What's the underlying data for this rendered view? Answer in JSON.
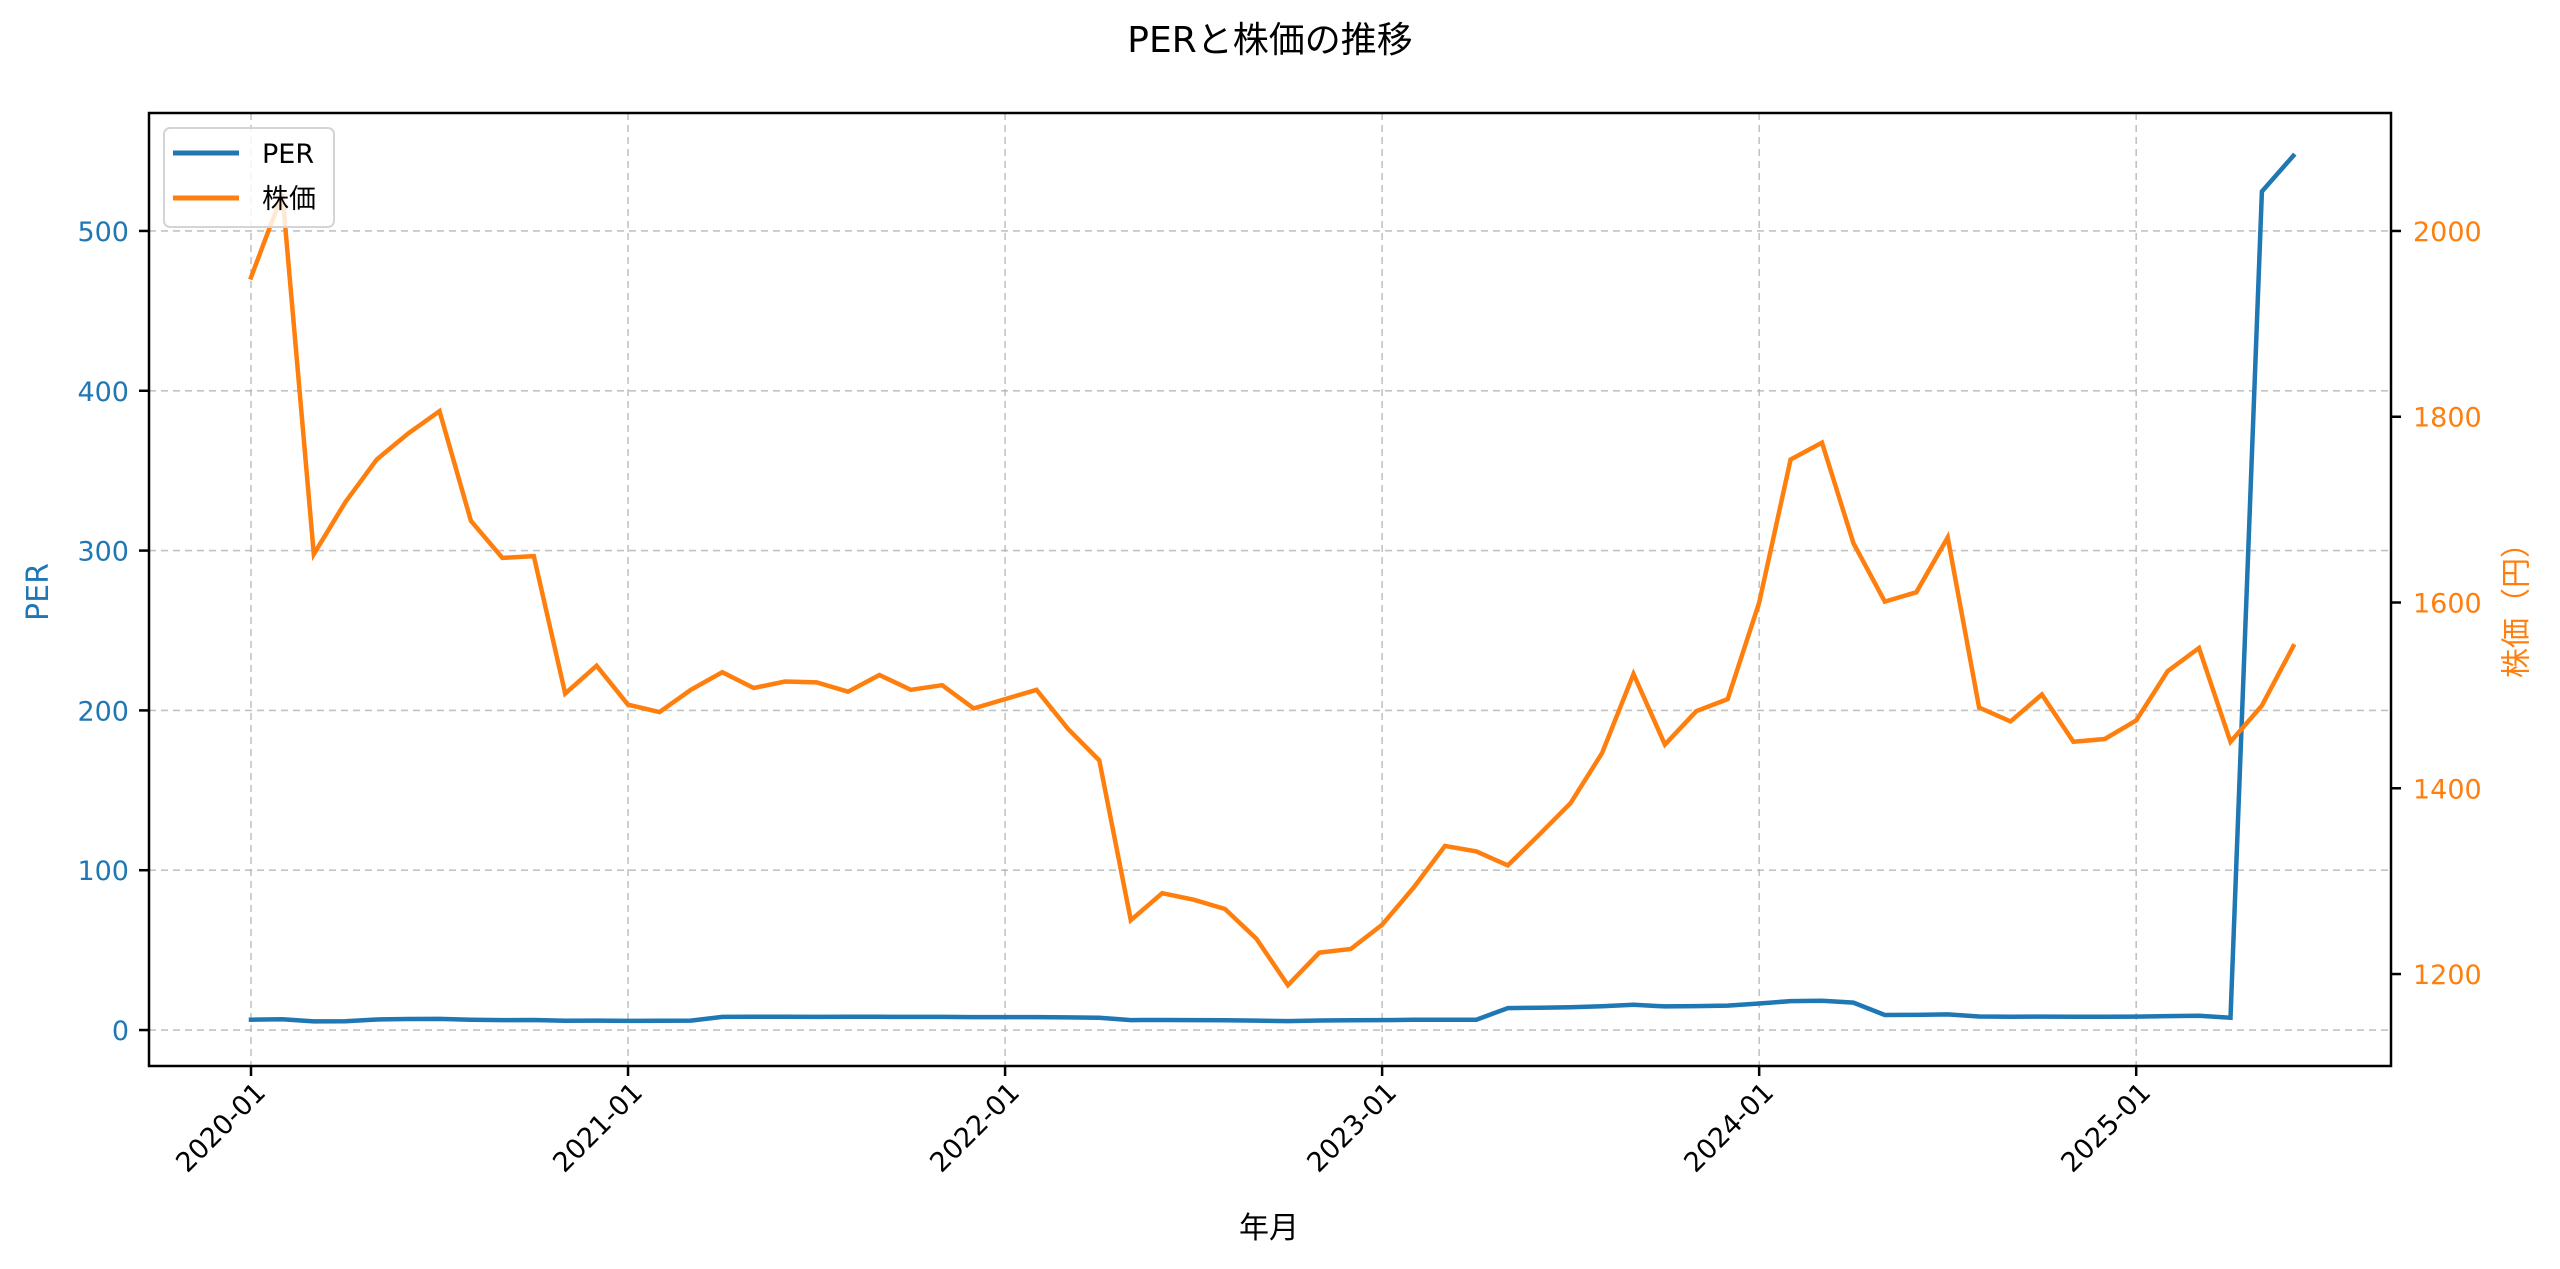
{
  "chart_data": {
    "type": "line",
    "title": "PERと株価の推移",
    "xlabel": "年月",
    "ylabel": "PER",
    "ylabel_right": "株価（円）",
    "x_ticks": [
      "2020-01",
      "2021-01",
      "2022-01",
      "2023-01",
      "2024-01",
      "2025-01"
    ],
    "y_ticks_left": [
      0,
      100,
      200,
      300,
      400,
      500
    ],
    "y_ticks_right": [
      1200,
      1400,
      1600,
      1800,
      2000
    ],
    "ylim_left": [
      -22.5,
      573.8
    ],
    "ylim_right": [
      1101,
      2127
    ],
    "grid": true,
    "legend_position": "upper left",
    "x": [
      "2020-01",
      "2020-02",
      "2020-03",
      "2020-04",
      "2020-05",
      "2020-06",
      "2020-07",
      "2020-08",
      "2020-09",
      "2020-10",
      "2020-11",
      "2020-12",
      "2021-01",
      "2021-02",
      "2021-03",
      "2021-04",
      "2021-05",
      "2021-06",
      "2021-07",
      "2021-08",
      "2021-09",
      "2021-10",
      "2021-11",
      "2021-12",
      "2022-01",
      "2022-02",
      "2022-03",
      "2022-04",
      "2022-05",
      "2022-06",
      "2022-07",
      "2022-08",
      "2022-09",
      "2022-10",
      "2022-11",
      "2022-12",
      "2023-01",
      "2023-02",
      "2023-03",
      "2023-04",
      "2023-05",
      "2023-06",
      "2023-07",
      "2023-08",
      "2023-09",
      "2023-10",
      "2023-11",
      "2023-12",
      "2024-01",
      "2024-02",
      "2024-03",
      "2024-04",
      "2024-05",
      "2024-06",
      "2024-07",
      "2024-08",
      "2024-09",
      "2024-10",
      "2024-11",
      "2024-12",
      "2025-01",
      "2025-02",
      "2025-03",
      "2025-04",
      "2025-05",
      "2025-06"
    ],
    "series": [
      {
        "name": "PER",
        "axis": "left",
        "color": "#1f77b4",
        "values": [
          6.5,
          6.8,
          5.4,
          5.5,
          6.6,
          6.9,
          7.0,
          6.5,
          6.2,
          6.3,
          5.8,
          5.9,
          5.7,
          5.8,
          5.9,
          8.2,
          8.3,
          8.3,
          8.2,
          8.3,
          8.3,
          8.2,
          8.2,
          8.1,
          8.1,
          8.1,
          7.9,
          7.7,
          6.2,
          6.3,
          6.2,
          6.1,
          5.9,
          5.6,
          6.0,
          6.1,
          6.2,
          6.4,
          6.5,
          6.5,
          13.7,
          14.0,
          14.3,
          14.9,
          15.8,
          14.8,
          15.0,
          15.3,
          16.6,
          18.1,
          18.3,
          17.2,
          9.4,
          9.5,
          9.8,
          8.5,
          8.3,
          8.4,
          8.3,
          8.3,
          8.4,
          8.7,
          8.9,
          7.7,
          524.7,
          547.0
        ]
      },
      {
        "name": "株価",
        "axis": "right",
        "color": "#ff7f0e",
        "values": [
          1950,
          2040,
          1652,
          1708,
          1754,
          1782,
          1806,
          1688,
          1648,
          1650,
          1502,
          1532,
          1490,
          1482,
          1506,
          1525,
          1508,
          1515,
          1514,
          1504,
          1522,
          1506,
          1511,
          1486,
          1496,
          1506,
          1464,
          1430,
          1258,
          1287,
          1280,
          1270,
          1238,
          1188,
          1223,
          1227,
          1253,
          1293,
          1338,
          1332,
          1317,
          1350,
          1384,
          1438,
          1523,
          1447,
          1483,
          1496,
          1600,
          1754,
          1772,
          1664,
          1601,
          1611,
          1670,
          1487,
          1472,
          1501,
          1450,
          1453,
          1473,
          1526,
          1551,
          1450,
          1489,
          1553
        ]
      }
    ]
  },
  "colors": {
    "per": "#1f77b4",
    "price": "#ff7f0e",
    "axis": "#000000",
    "grid": "#b0b0b0"
  },
  "legend": {
    "items": [
      {
        "label": "PER",
        "color": "#1f77b4"
      },
      {
        "label": "株価",
        "color": "#ff7f0e"
      }
    ]
  }
}
